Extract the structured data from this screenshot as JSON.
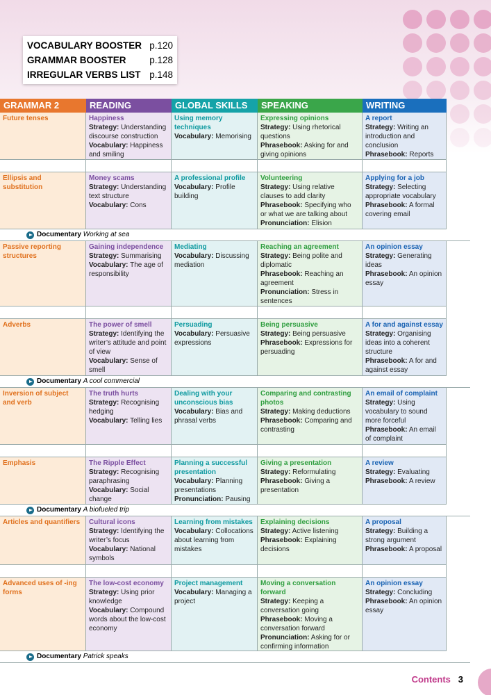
{
  "booster": [
    {
      "label": "VOCABULARY BOOSTER",
      "page": "p.120"
    },
    {
      "label": "GRAMMAR BOOSTER",
      "page": "p.128"
    },
    {
      "label": "IRREGULAR VERBS LIST",
      "page": "p.148"
    }
  ],
  "headers": [
    "GRAMMAR 2",
    "READING",
    "GLOBAL SKILLS",
    "SPEAKING",
    "WRITING"
  ],
  "units": [
    {
      "lessons": [
        [
          {
            "title": "Future tenses",
            "items": []
          },
          {
            "title": "Happiness",
            "items": [
              {
                "label": "Strategy:",
                "text": "Understanding discourse construction"
              },
              {
                "label": "Vocabulary:",
                "text": "Happiness and smiling"
              }
            ]
          },
          {
            "title": "Using memory techniques",
            "items": [
              {
                "label": "Vocabulary:",
                "text": "Memorising"
              }
            ]
          },
          {
            "title": "Expressing opinions",
            "items": [
              {
                "label": "Strategy:",
                "text": "Using rhetorical questions"
              },
              {
                "label": "Phrasebook:",
                "text": "Asking for and giving opinions"
              }
            ]
          },
          {
            "title": "A report",
            "items": [
              {
                "label": "Strategy:",
                "text": "Writing an introduction and conclusion"
              },
              {
                "label": "Phrasebook:",
                "text": "Reports"
              }
            ]
          }
        ],
        [
          {
            "title": "Ellipsis and substitution",
            "items": []
          },
          {
            "title": "Money scams",
            "items": [
              {
                "label": "Strategy:",
                "text": "Understanding text structure"
              },
              {
                "label": "Vocabulary:",
                "text": "Cons"
              }
            ]
          },
          {
            "title": "A professional profile",
            "items": [
              {
                "label": "Vocabulary:",
                "text": "Profile building"
              }
            ]
          },
          {
            "title": "Volunteering",
            "items": [
              {
                "label": "Strategy:",
                "text": "Using relative clauses to add clarity"
              },
              {
                "label": "Phrasebook:",
                "text": "Specifying who or what we are talking about"
              },
              {
                "label": "Pronunciation:",
                "text": "Elision"
              }
            ]
          },
          {
            "title": "Applying for a job",
            "items": [
              {
                "label": "Strategy:",
                "text": "Selecting appropriate vocabulary"
              },
              {
                "label": "Phrasebook:",
                "text": "A formal covering email"
              }
            ]
          }
        ]
      ],
      "documentary": {
        "label": "Documentary",
        "title": "Working at sea"
      }
    },
    {
      "lessons": [
        [
          {
            "title": "Passive reporting structures",
            "items": []
          },
          {
            "title": "Gaining independence",
            "items": [
              {
                "label": "Strategy:",
                "text": "Summarising"
              },
              {
                "label": "Vocabulary:",
                "text": "The age of responsibility"
              }
            ]
          },
          {
            "title": "Mediating",
            "items": [
              {
                "label": "Vocabulary:",
                "text": "Discussing mediation"
              }
            ]
          },
          {
            "title": "Reaching an agreement",
            "items": [
              {
                "label": "Strategy:",
                "text": "Being polite and diplomatic"
              },
              {
                "label": "Phrasebook:",
                "text": "Reaching an agreement"
              },
              {
                "label": "Pronunciation:",
                "text": "Stress in sentences"
              }
            ]
          },
          {
            "title": "An opinion essay",
            "items": [
              {
                "label": "Strategy:",
                "text": "Generating ideas"
              },
              {
                "label": "Phrasebook:",
                "text": "An opinion essay"
              }
            ]
          }
        ],
        [
          {
            "title": "Adverbs",
            "items": []
          },
          {
            "title": "The power of smell",
            "items": [
              {
                "label": "Strategy:",
                "text": "Identifying the writer’s attitude and point of view"
              },
              {
                "label": "Vocabulary:",
                "text": "Sense of smell"
              }
            ]
          },
          {
            "title": "Persuading",
            "items": [
              {
                "label": "Vocabulary:",
                "text": "Persuasive expressions"
              }
            ]
          },
          {
            "title": "Being persuasive",
            "items": [
              {
                "label": "Strategy:",
                "text": "Being persuasive"
              },
              {
                "label": "Phrasebook:",
                "text": "Expressions for persuading"
              }
            ]
          },
          {
            "title": "A for and against essay",
            "items": [
              {
                "label": "Strategy:",
                "text": "Organising ideas into a coherent structure"
              },
              {
                "label": "Phrasebook:",
                "text": "A for and against essay"
              }
            ]
          }
        ]
      ],
      "documentary": {
        "label": "Documentary",
        "title": "A cool commercial"
      }
    },
    {
      "lessons": [
        [
          {
            "title": "Inversion of subject and verb",
            "items": []
          },
          {
            "title": "The truth hurts",
            "items": [
              {
                "label": "Strategy:",
                "text": "Recognising hedging"
              },
              {
                "label": "Vocabulary:",
                "text": "Telling lies"
              }
            ]
          },
          {
            "title": "Dealing with your unconscious bias",
            "items": [
              {
                "label": "Vocabulary:",
                "text": "Bias and phrasal verbs"
              }
            ]
          },
          {
            "title": "Comparing and contrasting photos",
            "items": [
              {
                "label": "Strategy:",
                "text": "Making deductions"
              },
              {
                "label": "Phrasebook:",
                "text": "Comparing and contrasting"
              }
            ]
          },
          {
            "title": "An email of complaint",
            "items": [
              {
                "label": "Strategy:",
                "text": "Using vocabulary to sound more forceful"
              },
              {
                "label": "Phrasebook:",
                "text": "An email of complaint"
              }
            ]
          }
        ],
        [
          {
            "title": "Emphasis",
            "items": []
          },
          {
            "title": "The Ripple Effect",
            "items": [
              {
                "label": "Strategy:",
                "text": "Recognising paraphrasing"
              },
              {
                "label": "Vocabulary:",
                "text": "Social change"
              }
            ]
          },
          {
            "title": "Planning a successful presentation",
            "items": [
              {
                "label": "Vocabulary:",
                "text": "Planning presentations"
              },
              {
                "label": "Pronunciation:",
                "text": "Pausing"
              }
            ]
          },
          {
            "title": "Giving a presentation",
            "items": [
              {
                "label": "Strategy:",
                "text": "Reformulating"
              },
              {
                "label": "Phrasebook:",
                "text": "Giving a presentation"
              }
            ]
          },
          {
            "title": "A review",
            "items": [
              {
                "label": "Strategy:",
                "text": "Evaluating"
              },
              {
                "label": "Phrasebook:",
                "text": "A review"
              }
            ]
          }
        ]
      ],
      "documentary": {
        "label": "Documentary",
        "title": "A biofueled trip"
      }
    },
    {
      "lessons": [
        [
          {
            "title": "Articles and quantifiers",
            "items": []
          },
          {
            "title": "Cultural icons",
            "items": [
              {
                "label": "Strategy:",
                "text": "Identifying the writer’s focus"
              },
              {
                "label": "Vocabulary:",
                "text": "National symbols"
              }
            ]
          },
          {
            "title": "Learning from mistakes",
            "items": [
              {
                "label": "Vocabulary:",
                "text": "Collocations about learning from mistakes"
              }
            ]
          },
          {
            "title": "Explaining decisions",
            "items": [
              {
                "label": "Strategy:",
                "text": "Active listening"
              },
              {
                "label": "Phrasebook:",
                "text": "Explaining decisions"
              }
            ]
          },
          {
            "title": "A proposal",
            "items": [
              {
                "label": "Strategy:",
                "text": "Building a strong argument"
              },
              {
                "label": "Phrasebook:",
                "text": "A proposal"
              }
            ]
          }
        ],
        [
          {
            "title": "Advanced uses of -ing forms",
            "items": []
          },
          {
            "title": "The low-cost economy",
            "items": [
              {
                "label": "Strategy:",
                "text": "Using prior knowledge"
              },
              {
                "label": "Vocabulary:",
                "text": "Compound words about the low-cost economy"
              }
            ]
          },
          {
            "title": "Project management",
            "items": [
              {
                "label": "Vocabulary:",
                "text": "Managing a project"
              }
            ]
          },
          {
            "title": "Moving a conversation forward",
            "items": [
              {
                "label": "Strategy:",
                "text": "Keeping a conversation going"
              },
              {
                "label": "Phrasebook:",
                "text": "Moving a conversation forward"
              },
              {
                "label": "Pronunciation:",
                "text": "Asking for or confirming information"
              }
            ]
          },
          {
            "title": "An opinion essay",
            "items": [
              {
                "label": "Strategy:",
                "text": "Concluding"
              },
              {
                "label": "Phrasebook:",
                "text": "An opinion essay"
              }
            ]
          }
        ]
      ],
      "documentary": {
        "label": "Documentary",
        "title": "Patrick speaks"
      }
    }
  ],
  "footer": {
    "label": "Contents",
    "page": "3"
  }
}
